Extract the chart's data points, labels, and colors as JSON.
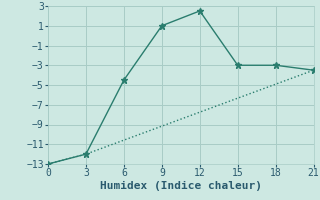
{
  "line1_x": [
    0,
    3,
    6,
    9,
    12,
    15,
    18,
    21
  ],
  "line1_y": [
    -13,
    -12,
    -4.5,
    1,
    2.5,
    -3,
    -3,
    -3.5
  ],
  "line2_x": [
    0,
    3,
    21
  ],
  "line2_y": [
    -13,
    -12,
    -3.5
  ],
  "color": "#2a7d6e",
  "bg_color": "#cde8e2",
  "grid_color": "#a8ccc6",
  "xlabel": "Humidex (Indice chaleur)",
  "xlim": [
    0,
    21
  ],
  "ylim": [
    -13,
    3
  ],
  "xticks": [
    0,
    3,
    6,
    9,
    12,
    15,
    18,
    21
  ],
  "yticks": [
    -13,
    -11,
    -9,
    -7,
    -5,
    -3,
    -1,
    1,
    3
  ],
  "tick_color": "#2a5a6e",
  "marker": "*",
  "markersize": 5,
  "linewidth": 1.0,
  "font_size_tick": 7,
  "font_size_label": 8
}
